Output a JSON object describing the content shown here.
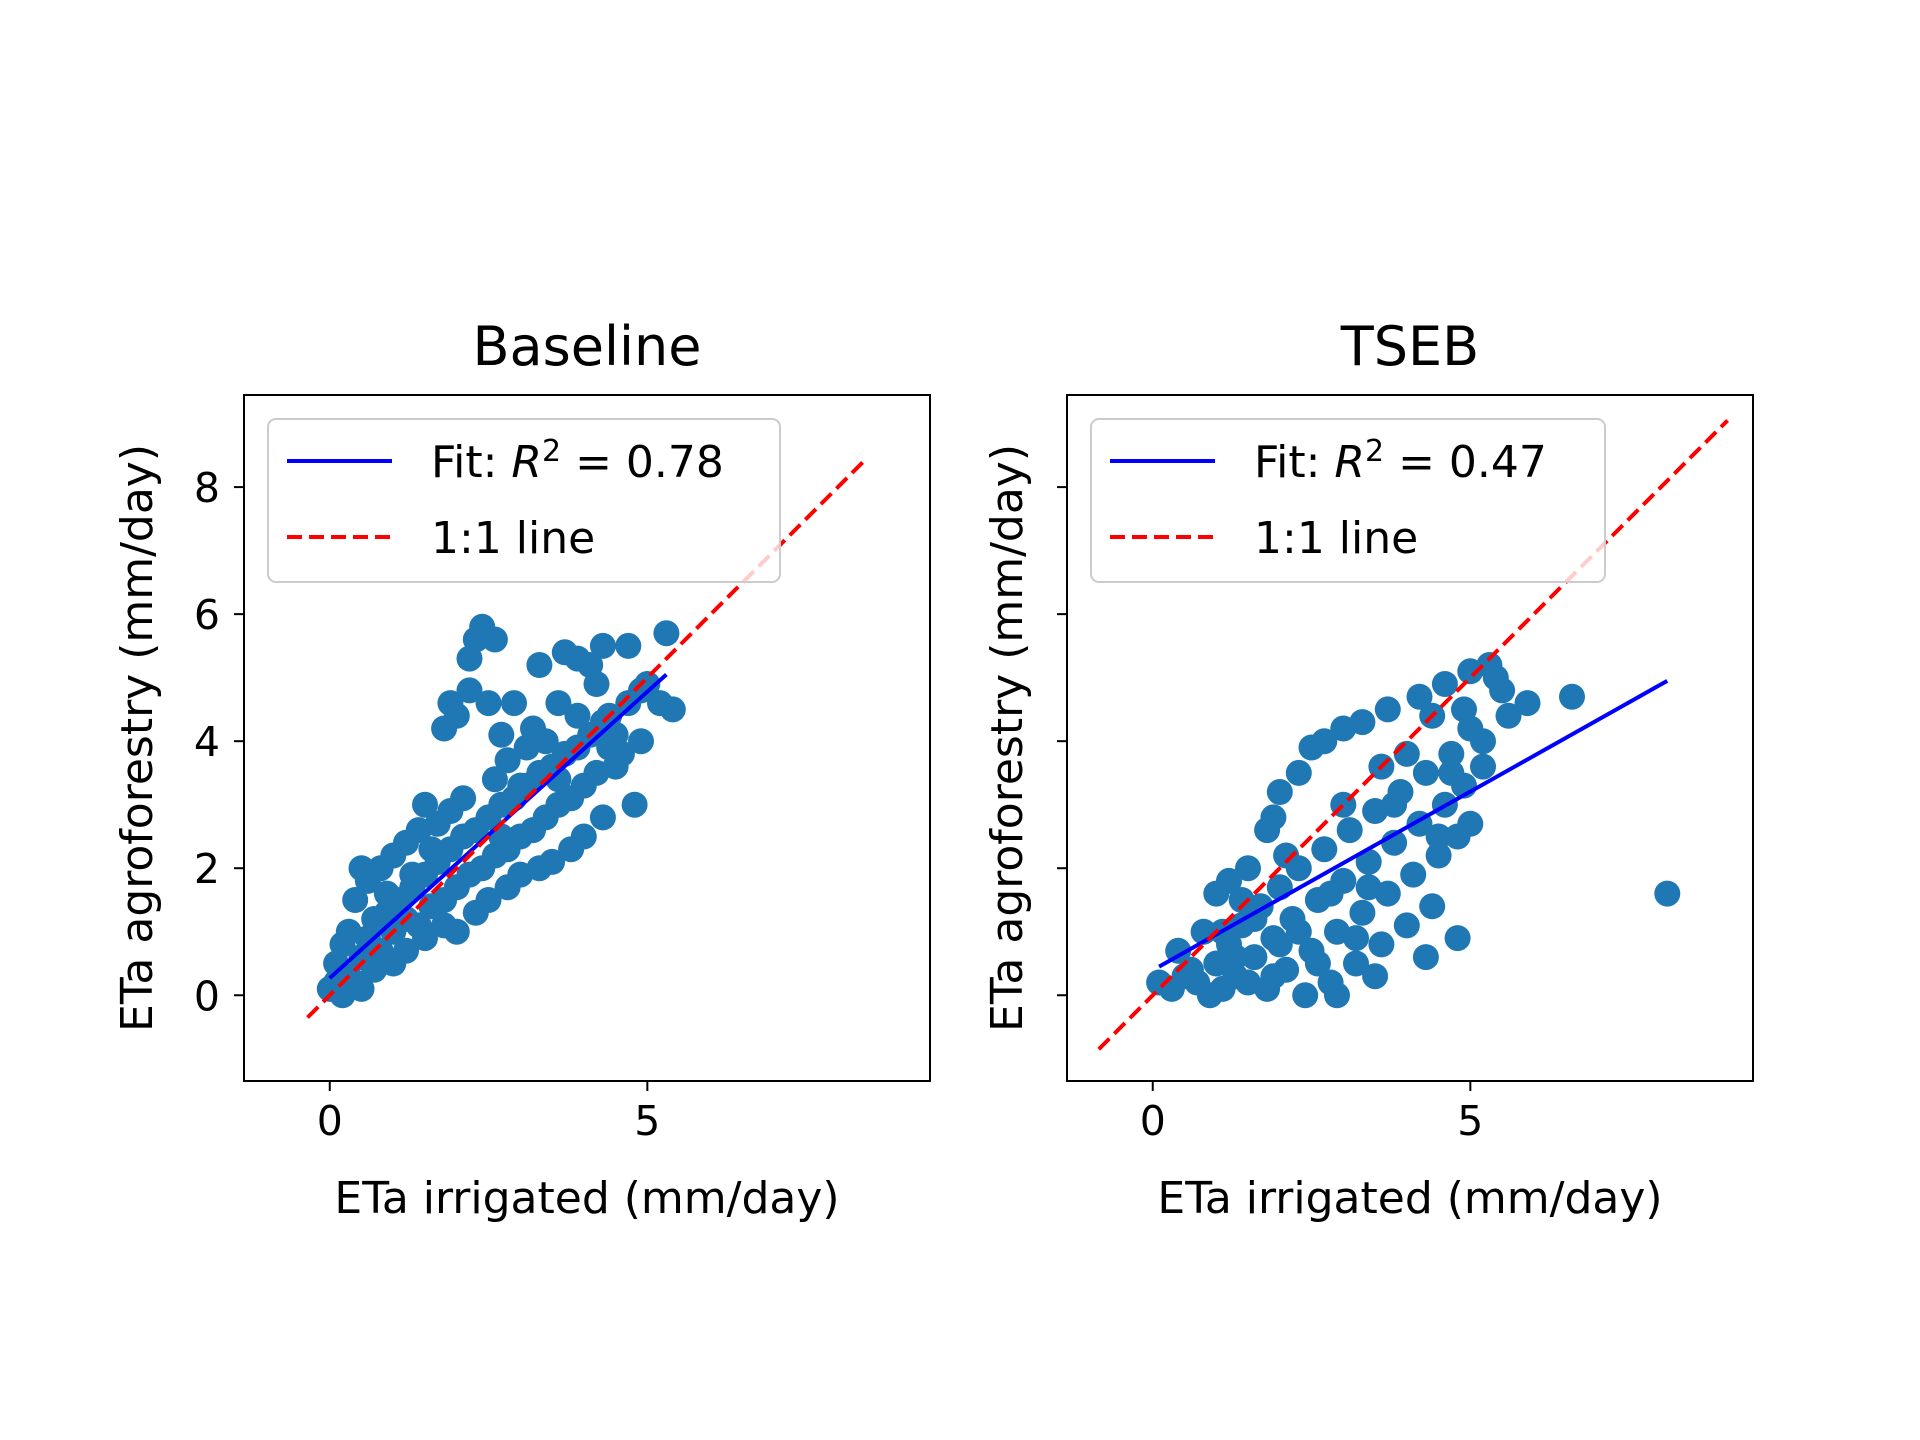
{
  "colors": {
    "scatter": "#1f77b4",
    "fit": "#0000ff",
    "identity": "#ff0000"
  },
  "chart_data": [
    {
      "type": "scatter",
      "title": "Baseline",
      "xlabel": "ETa irrigated (mm/day)",
      "ylabel": "ETa agroforestry (mm/day)",
      "xlim": [
        -1.35,
        9.45
      ],
      "ylim": [
        -1.35,
        9.45
      ],
      "xticks": [
        0,
        5
      ],
      "xtick_labels": [
        "0",
        "5"
      ],
      "yticks": [
        0,
        2,
        4,
        6,
        8
      ],
      "ytick_labels": [
        "0",
        "2",
        "4",
        "6",
        "8"
      ],
      "grid": false,
      "legend_position": "upper-left",
      "fit": {
        "label": "Fit: ",
        "r2_symbol": "R",
        "r2_sup": "2",
        "r2_value": " = 0.78",
        "x": [
          0,
          5.3
        ],
        "y": [
          0.27,
          5.05
        ]
      },
      "identity": {
        "label": "1:1 line",
        "x": [
          -0.35,
          8.45
        ],
        "y": [
          -0.35,
          8.45
        ]
      },
      "points": [
        [
          0,
          0.1
        ],
        [
          0.1,
          0.2
        ],
        [
          0.2,
          0.1
        ],
        [
          0.3,
          0.3
        ],
        [
          0.4,
          0.2
        ],
        [
          0.1,
          0.5
        ],
        [
          0.2,
          0.8
        ],
        [
          0.3,
          1.0
        ],
        [
          0.5,
          0.6
        ],
        [
          0.6,
          0.9
        ],
        [
          0.7,
          1.2
        ],
        [
          0.8,
          0.7
        ],
        [
          0.9,
          1.3
        ],
        [
          1.0,
          1.0
        ],
        [
          1.1,
          1.5
        ],
        [
          1.2,
          1.2
        ],
        [
          1.3,
          1.7
        ],
        [
          1.4,
          1.1
        ],
        [
          1.5,
          1.9
        ],
        [
          1.6,
          1.4
        ],
        [
          1.7,
          2.1
        ],
        [
          1.8,
          1.5
        ],
        [
          1.9,
          2.3
        ],
        [
          2.0,
          1.7
        ],
        [
          2.1,
          2.5
        ],
        [
          2.2,
          1.9
        ],
        [
          2.3,
          2.6
        ],
        [
          2.4,
          2.0
        ],
        [
          2.5,
          2.8
        ],
        [
          2.6,
          2.2
        ],
        [
          2.7,
          3.0
        ],
        [
          2.8,
          2.3
        ],
        [
          2.9,
          3.1
        ],
        [
          3.0,
          2.5
        ],
        [
          3.1,
          3.3
        ],
        [
          3.2,
          2.6
        ],
        [
          3.3,
          3.5
        ],
        [
          3.4,
          2.8
        ],
        [
          3.5,
          3.6
        ],
        [
          3.6,
          3.0
        ],
        [
          3.7,
          3.8
        ],
        [
          3.8,
          3.1
        ],
        [
          3.9,
          3.9
        ],
        [
          4.0,
          3.3
        ],
        [
          4.1,
          4.1
        ],
        [
          4.2,
          3.5
        ],
        [
          4.3,
          4.3
        ],
        [
          4.5,
          3.6
        ],
        [
          4.7,
          4.6
        ],
        [
          4.8,
          3.0
        ],
        [
          5.0,
          4.9
        ],
        [
          5.2,
          4.6
        ],
        [
          5.4,
          4.5
        ],
        [
          0.5,
          2.0
        ],
        [
          0.4,
          1.5
        ],
        [
          0.6,
          1.8
        ],
        [
          0.8,
          2.0
        ],
        [
          1.0,
          2.2
        ],
        [
          1.2,
          2.4
        ],
        [
          1.4,
          2.6
        ],
        [
          1.5,
          3.0
        ],
        [
          1.7,
          2.7
        ],
        [
          1.9,
          2.9
        ],
        [
          2.1,
          3.1
        ],
        [
          2.0,
          1.0
        ],
        [
          2.3,
          1.3
        ],
        [
          2.5,
          1.5
        ],
        [
          2.8,
          1.7
        ],
        [
          3.0,
          1.9
        ],
        [
          3.3,
          2.0
        ],
        [
          3.5,
          2.1
        ],
        [
          3.8,
          2.3
        ],
        [
          4.0,
          2.5
        ],
        [
          4.3,
          2.8
        ],
        [
          1.8,
          4.2
        ],
        [
          1.9,
          4.6
        ],
        [
          2.0,
          4.4
        ],
        [
          2.2,
          4.8
        ],
        [
          2.3,
          5.6
        ],
        [
          2.2,
          5.3
        ],
        [
          2.4,
          5.8
        ],
        [
          2.6,
          5.6
        ],
        [
          2.5,
          4.6
        ],
        [
          2.7,
          4.1
        ],
        [
          2.8,
          3.7
        ],
        [
          3.0,
          3.3
        ],
        [
          3.2,
          4.2
        ],
        [
          3.4,
          4.0
        ],
        [
          3.5,
          3.5
        ],
        [
          3.3,
          5.2
        ],
        [
          3.7,
          5.4
        ],
        [
          3.9,
          5.3
        ],
        [
          4.1,
          5.2
        ],
        [
          4.3,
          5.5
        ],
        [
          4.7,
          5.5
        ],
        [
          4.2,
          4.9
        ],
        [
          4.5,
          4.1
        ],
        [
          4.6,
          3.8
        ],
        [
          4.9,
          4.0
        ],
        [
          5.3,
          5.7
        ],
        [
          3.6,
          4.6
        ],
        [
          3.9,
          4.4
        ],
        [
          4.4,
          3.9
        ],
        [
          2.9,
          4.6
        ],
        [
          3.1,
          3.9
        ],
        [
          2.6,
          3.4
        ],
        [
          1.6,
          2.3
        ],
        [
          1.3,
          1.9
        ],
        [
          0.9,
          1.6
        ],
        [
          0.7,
          0.4
        ],
        [
          1.0,
          0.5
        ],
        [
          1.2,
          0.7
        ],
        [
          1.5,
          0.9
        ],
        [
          1.8,
          1.1
        ],
        [
          2.7,
          2.5
        ],
        [
          3.6,
          3.4
        ],
        [
          4.4,
          4.4
        ],
        [
          4.9,
          4.8
        ],
        [
          0.2,
          0.0
        ],
        [
          0.5,
          0.1
        ]
      ]
    },
    {
      "type": "scatter",
      "title": "TSEB",
      "xlabel": "ETa irrigated (mm/day)",
      "ylabel": "ETa agroforestry (mm/day)",
      "xlim": [
        -1.35,
        9.45
      ],
      "ylim": [
        -1.35,
        9.45
      ],
      "xticks": [
        0,
        5
      ],
      "xtick_labels": [
        "0",
        "5"
      ],
      "yticks": [
        0,
        2,
        4,
        6,
        8
      ],
      "ytick_labels": [
        "",
        "",
        "",
        "",
        ""
      ],
      "grid": false,
      "legend_position": "upper-left",
      "fit": {
        "label": "Fit: ",
        "r2_symbol": "R",
        "r2_sup": "2",
        "r2_value": " = 0.47",
        "x": [
          0.1,
          8.1
        ],
        "y": [
          0.45,
          4.95
        ]
      },
      "identity": {
        "label": "1:1 line",
        "x": [
          -0.85,
          9.05
        ],
        "y": [
          -0.85,
          9.05
        ]
      },
      "points": [
        [
          0.1,
          0.2
        ],
        [
          0.3,
          0.1
        ],
        [
          0.5,
          0.3
        ],
        [
          0.7,
          0.2
        ],
        [
          0.9,
          0.0
        ],
        [
          1.0,
          0.5
        ],
        [
          1.1,
          0.1
        ],
        [
          1.2,
          0.8
        ],
        [
          1.3,
          0.3
        ],
        [
          1.4,
          1.1
        ],
        [
          1.5,
          0.2
        ],
        [
          1.6,
          0.6
        ],
        [
          1.7,
          1.4
        ],
        [
          1.8,
          0.1
        ],
        [
          1.9,
          0.9
        ],
        [
          2.0,
          1.7
        ],
        [
          2.1,
          0.4
        ],
        [
          2.2,
          1.2
        ],
        [
          2.3,
          2.0
        ],
        [
          2.4,
          0.0
        ],
        [
          2.5,
          0.7
        ],
        [
          2.6,
          1.5
        ],
        [
          2.7,
          2.3
        ],
        [
          2.8,
          0.2
        ],
        [
          2.9,
          1.0
        ],
        [
          3.0,
          1.8
        ],
        [
          3.1,
          2.6
        ],
        [
          3.2,
          0.5
        ],
        [
          3.3,
          1.3
        ],
        [
          3.4,
          2.1
        ],
        [
          3.5,
          2.9
        ],
        [
          3.6,
          0.8
        ],
        [
          3.7,
          1.6
        ],
        [
          3.8,
          2.4
        ],
        [
          3.9,
          3.2
        ],
        [
          4.0,
          1.1
        ],
        [
          4.1,
          1.9
        ],
        [
          4.2,
          2.7
        ],
        [
          4.3,
          3.5
        ],
        [
          4.4,
          1.4
        ],
        [
          4.5,
          2.2
        ],
        [
          4.6,
          3.0
        ],
        [
          4.7,
          3.8
        ],
        [
          4.8,
          2.5
        ],
        [
          4.9,
          3.3
        ],
        [
          5.0,
          4.2
        ],
        [
          5.2,
          3.6
        ],
        [
          5.4,
          5.0
        ],
        [
          5.6,
          4.4
        ],
        [
          5.9,
          4.6
        ],
        [
          6.6,
          4.7
        ],
        [
          8.1,
          1.6
        ],
        [
          4.8,
          0.9
        ],
        [
          4.3,
          0.6
        ],
        [
          3.5,
          0.3
        ],
        [
          2.9,
          0.0
        ],
        [
          0.8,
          1.0
        ],
        [
          1.0,
          1.6
        ],
        [
          1.2,
          1.8
        ],
        [
          1.5,
          2.0
        ],
        [
          1.4,
          1.5
        ],
        [
          1.8,
          2.6
        ],
        [
          2.0,
          3.2
        ],
        [
          2.3,
          3.5
        ],
        [
          2.5,
          3.9
        ],
        [
          2.7,
          4.0
        ],
        [
          3.0,
          4.2
        ],
        [
          3.3,
          4.3
        ],
        [
          3.7,
          4.5
        ],
        [
          4.2,
          4.7
        ],
        [
          4.6,
          4.9
        ],
        [
          5.0,
          5.1
        ],
        [
          5.3,
          5.2
        ],
        [
          1.9,
          2.8
        ],
        [
          2.1,
          2.2
        ],
        [
          3.0,
          3.0
        ],
        [
          3.6,
          3.6
        ],
        [
          4.4,
          4.4
        ],
        [
          3.2,
          0.9
        ],
        [
          2.6,
          0.5
        ],
        [
          1.9,
          0.3
        ],
        [
          1.3,
          0.6
        ],
        [
          0.6,
          0.4
        ],
        [
          4.5,
          2.5
        ],
        [
          5.0,
          2.7
        ],
        [
          4.0,
          3.8
        ],
        [
          3.8,
          3.0
        ],
        [
          2.3,
          1.0
        ],
        [
          2.8,
          1.6
        ],
        [
          3.4,
          1.7
        ],
        [
          2.0,
          0.8
        ],
        [
          1.6,
          1.2
        ],
        [
          1.1,
          1.0
        ],
        [
          0.4,
          0.7
        ],
        [
          4.7,
          3.5
        ],
        [
          5.2,
          4.0
        ],
        [
          4.9,
          4.5
        ],
        [
          5.5,
          4.8
        ]
      ]
    }
  ]
}
